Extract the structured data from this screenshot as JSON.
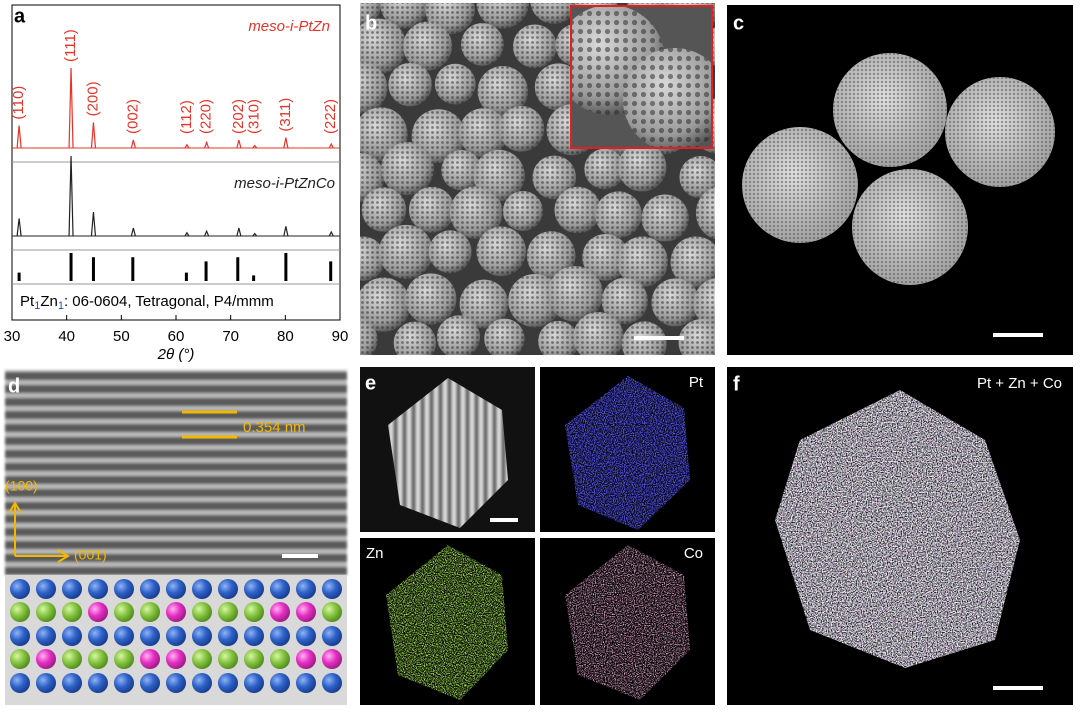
{
  "panel_labels": [
    "a",
    "b",
    "c",
    "d",
    "e",
    "f"
  ],
  "chart_data": {
    "type": "line",
    "xlabel": "2θ (°)",
    "xlim": [
      30,
      90
    ],
    "xticks": [
      30,
      40,
      50,
      60,
      70,
      80,
      90
    ],
    "series": [
      {
        "name": "meso-i-PtZn",
        "color": "#e5332a",
        "x": [
          31.3,
          40.8,
          44.9,
          52.2,
          62.0,
          65.6,
          71.5,
          74.4,
          80.1,
          88.4
        ],
        "values": [
          28,
          100,
          32,
          10,
          4,
          7,
          10,
          3,
          13,
          5
        ],
        "peak_labels": [
          "(110)",
          "(111)",
          "(200)",
          "(002)",
          "(112)",
          "(220)",
          "(202)",
          "(310)",
          "(311)",
          "(222)"
        ]
      },
      {
        "name": "meso-i-PtZnCo",
        "color": "#222222",
        "x": [
          31.3,
          40.8,
          44.9,
          52.2,
          62.0,
          65.6,
          71.5,
          74.4,
          80.1,
          88.4
        ],
        "values": [
          22,
          100,
          30,
          10,
          4,
          6,
          10,
          3,
          12,
          5
        ]
      }
    ],
    "reference": {
      "label_parts": [
        "Pt",
        "1",
        "Zn",
        "1",
        ": 06-0604, Tetragonal, P4/mmm"
      ],
      "color": "#000000",
      "x": [
        31.3,
        40.8,
        44.9,
        52.1,
        61.9,
        65.5,
        71.3,
        74.2,
        80.1,
        88.3
      ],
      "values": [
        30,
        100,
        85,
        85,
        30,
        70,
        85,
        20,
        100,
        70
      ]
    }
  },
  "panel_d": {
    "spacing": "0.354 nm",
    "directions": [
      "(100)",
      "(001)"
    ]
  },
  "panel_e": {
    "maps": [
      "Pt",
      "Zn",
      "Co"
    ]
  },
  "panel_f": {
    "label": "Pt + Zn + Co"
  }
}
